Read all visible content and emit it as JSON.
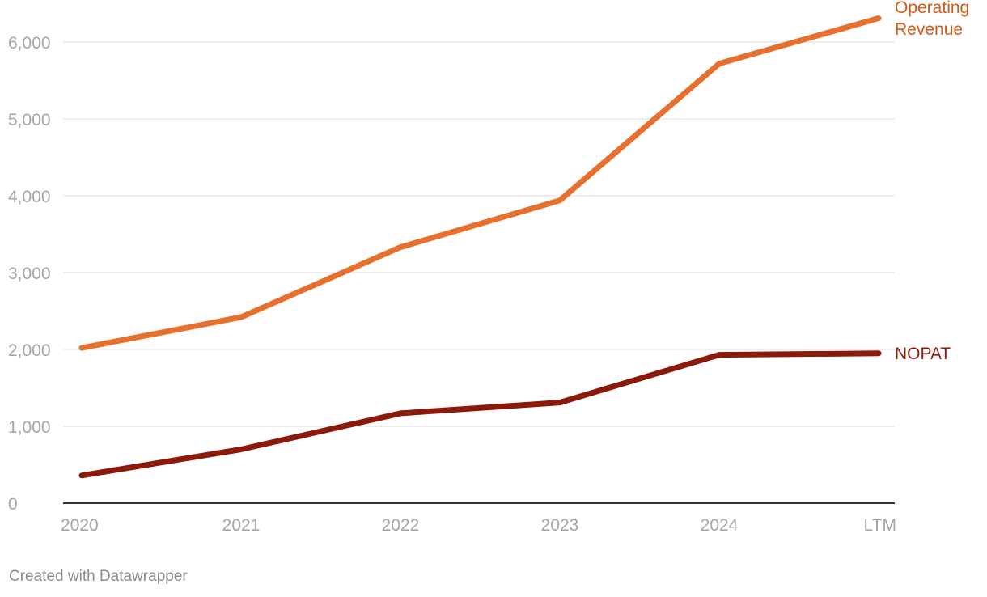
{
  "chart_data": {
    "type": "line",
    "categories": [
      "2020",
      "2021",
      "2022",
      "2023",
      "2024",
      "LTM"
    ],
    "series": [
      {
        "name": "Operating Revenue",
        "label_lines": [
          "Operating",
          "Revenue"
        ],
        "color": "#e8702f",
        "label_color": "#d35a16",
        "values": [
          2020,
          2420,
          3330,
          3940,
          5720,
          6310
        ]
      },
      {
        "name": "NOPAT",
        "label_lines": [
          "NOPAT"
        ],
        "color": "#8b1a0a",
        "label_color": "#8b1a0a",
        "values": [
          360,
          700,
          1170,
          1310,
          1930,
          1950
        ]
      }
    ],
    "yticks": [
      0,
      1000,
      2000,
      3000,
      4000,
      5000,
      6000
    ],
    "ytick_labels": [
      "0",
      "1,000",
      "2,000",
      "3,000",
      "4,000",
      "5,000",
      "6,000"
    ],
    "ylim": [
      0,
      6000
    ],
    "grid": true,
    "legend": "direct labels at line ends"
  },
  "credit": "Created with Datawrapper"
}
